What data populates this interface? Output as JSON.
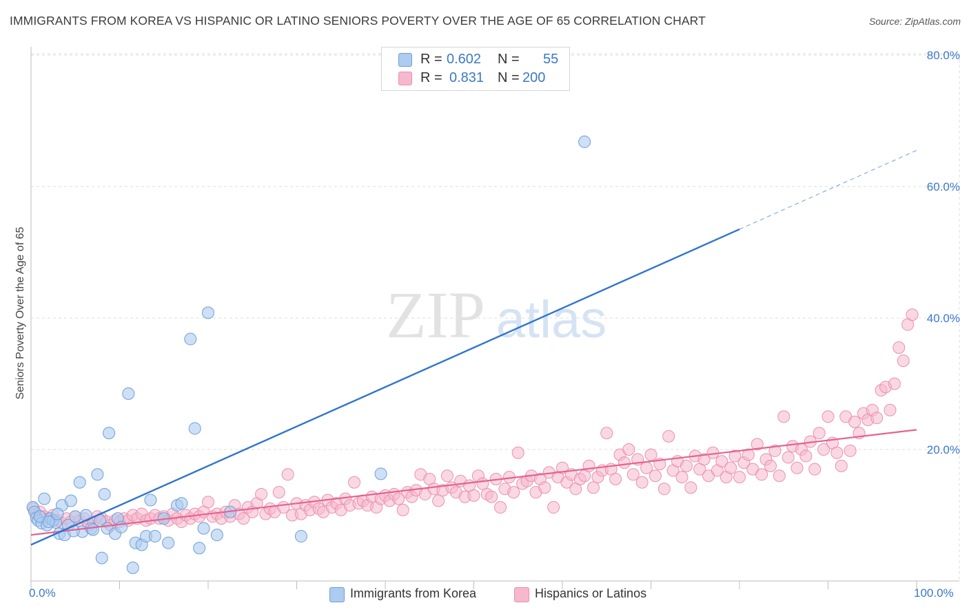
{
  "title": "IMMIGRANTS FROM KOREA VS HISPANIC OR LATINO SENIORS POVERTY OVER THE AGE OF 65 CORRELATION CHART",
  "source": "Source: ZipAtlas.com",
  "watermark": {
    "zip": "ZIP",
    "atlas": "atlas"
  },
  "legend": {
    "korea": {
      "r_label": "R =",
      "r_value": "0.602",
      "n_label": "N =",
      "n_value": "55"
    },
    "hispanic": {
      "r_label": "R =",
      "r_value": "0.831",
      "n_label": "N =",
      "n_value": "200"
    }
  },
  "bottom_legend": {
    "korea": "Immigrants from Korea",
    "hispanic": "Hispanics or Latinos"
  },
  "colors": {
    "korea_fill": "#aecbf0",
    "korea_stroke": "#6b9fd8",
    "korea_line": "#2e74d0",
    "hispanic_fill": "#f6b8cc",
    "hispanic_stroke": "#eb8fae",
    "hispanic_line": "#e5628f",
    "axis_label": "#3a78c9",
    "grid": "#dcdcdc"
  },
  "chart_data": {
    "type": "scatter",
    "title": "IMMIGRANTS FROM KOREA VS HISPANIC OR LATINO SENIORS POVERTY OVER THE AGE OF 65 CORRELATION CHART",
    "xlabel": "",
    "ylabel": "Seniors Poverty Over the Age of 65",
    "xlim": [
      0,
      100
    ],
    "ylim": [
      0,
      82
    ],
    "x_tick_labels": [
      "0.0%",
      "100.0%"
    ],
    "y_ticks": [
      20,
      40,
      60,
      80
    ],
    "y_tick_labels": [
      "20.0%",
      "40.0%",
      "60.0%",
      "80.0%"
    ],
    "grid": true,
    "series": [
      {
        "name": "Immigrants from Korea",
        "trend": {
          "x0": 0,
          "y0": 5.5,
          "x1": 80,
          "y1": 53.5,
          "dash_x1": 100,
          "dash_y1": 65.5
        },
        "points": [
          [
            0.2,
            11.2
          ],
          [
            0.4,
            10.5
          ],
          [
            0.6,
            9.6
          ],
          [
            0.8,
            9.2
          ],
          [
            1.2,
            8.8
          ],
          [
            1.5,
            12.5
          ],
          [
            1.8,
            8.5
          ],
          [
            2.2,
            9.5
          ],
          [
            2.5,
            9.2
          ],
          [
            2.8,
            8.9
          ],
          [
            3.2,
            7.2
          ],
          [
            3.5,
            11.5
          ],
          [
            3.8,
            7.0
          ],
          [
            4.2,
            8.5
          ],
          [
            4.5,
            12.2
          ],
          [
            5.0,
            9.8
          ],
          [
            5.5,
            15.0
          ],
          [
            5.8,
            7.5
          ],
          [
            6.2,
            10.0
          ],
          [
            6.8,
            8.0
          ],
          [
            7.0,
            7.8
          ],
          [
            7.5,
            16.2
          ],
          [
            7.8,
            9.2
          ],
          [
            8.0,
            3.5
          ],
          [
            8.3,
            13.2
          ],
          [
            8.6,
            8.0
          ],
          [
            8.8,
            22.5
          ],
          [
            9.5,
            7.2
          ],
          [
            9.8,
            9.5
          ],
          [
            10.2,
            8.2
          ],
          [
            11.0,
            28.5
          ],
          [
            11.5,
            2.0
          ],
          [
            11.8,
            5.8
          ],
          [
            12.5,
            5.5
          ],
          [
            13.0,
            6.8
          ],
          [
            13.5,
            12.3
          ],
          [
            14.0,
            6.8
          ],
          [
            15.0,
            9.5
          ],
          [
            15.5,
            5.8
          ],
          [
            16.5,
            11.5
          ],
          [
            17.0,
            11.8
          ],
          [
            18.0,
            36.8
          ],
          [
            18.5,
            23.2
          ],
          [
            19.0,
            5.0
          ],
          [
            19.5,
            8.0
          ],
          [
            20.0,
            40.8
          ],
          [
            21.0,
            7.0
          ],
          [
            22.5,
            10.5
          ],
          [
            30.5,
            6.8
          ],
          [
            39.5,
            16.3
          ],
          [
            62.5,
            66.8
          ],
          [
            1.0,
            9.8
          ],
          [
            2.0,
            9.0
          ],
          [
            3.0,
            10.2
          ],
          [
            4.8,
            7.6
          ]
        ]
      },
      {
        "name": "Hispanics or Latinos",
        "trend": {
          "x0": 0,
          "y0": 7.0,
          "x1": 100,
          "y1": 23.0
        },
        "points": [
          [
            0.3,
            11.0
          ],
          [
            0.6,
            10.2
          ],
          [
            1.0,
            10.5
          ],
          [
            1.5,
            9.8
          ],
          [
            2.0,
            9.5
          ],
          [
            2.5,
            10.0
          ],
          [
            3.0,
            9.2
          ],
          [
            3.5,
            8.8
          ],
          [
            4.0,
            9.5
          ],
          [
            4.5,
            9.0
          ],
          [
            5.0,
            9.8
          ],
          [
            5.5,
            9.2
          ],
          [
            6.0,
            9.5
          ],
          [
            6.5,
            8.5
          ],
          [
            7.0,
            9.0
          ],
          [
            7.5,
            9.8
          ],
          [
            8.0,
            9.5
          ],
          [
            8.5,
            9.0
          ],
          [
            9.0,
            8.5
          ],
          [
            9.5,
            9.2
          ],
          [
            10.0,
            9.0
          ],
          [
            10.5,
            9.5
          ],
          [
            11.0,
            9.2
          ],
          [
            11.5,
            10.0
          ],
          [
            12.0,
            9.5
          ],
          [
            12.5,
            10.2
          ],
          [
            13.0,
            9.2
          ],
          [
            13.5,
            9.5
          ],
          [
            14.0,
            10.0
          ],
          [
            14.5,
            9.5
          ],
          [
            15.0,
            9.8
          ],
          [
            15.5,
            9.2
          ],
          [
            16.0,
            10.2
          ],
          [
            16.5,
            9.5
          ],
          [
            17.0,
            9.0
          ],
          [
            17.5,
            10.0
          ],
          [
            18.0,
            9.5
          ],
          [
            18.5,
            10.2
          ],
          [
            19.0,
            9.8
          ],
          [
            19.5,
            10.5
          ],
          [
            20.0,
            12.0
          ],
          [
            20.5,
            9.8
          ],
          [
            21.0,
            10.2
          ],
          [
            21.5,
            9.5
          ],
          [
            22.0,
            10.5
          ],
          [
            22.5,
            9.8
          ],
          [
            23.0,
            11.5
          ],
          [
            23.5,
            10.2
          ],
          [
            24.0,
            9.5
          ],
          [
            24.5,
            11.2
          ],
          [
            25.0,
            10.5
          ],
          [
            25.5,
            11.8
          ],
          [
            26.0,
            13.2
          ],
          [
            26.5,
            10.2
          ],
          [
            27.0,
            11.0
          ],
          [
            27.5,
            10.5
          ],
          [
            28.0,
            13.5
          ],
          [
            28.5,
            11.2
          ],
          [
            29.0,
            16.2
          ],
          [
            29.5,
            10.0
          ],
          [
            30.0,
            11.8
          ],
          [
            30.5,
            10.2
          ],
          [
            31.0,
            11.5
          ],
          [
            31.5,
            10.8
          ],
          [
            32.0,
            12.0
          ],
          [
            32.5,
            11.0
          ],
          [
            33.0,
            10.5
          ],
          [
            33.5,
            12.3
          ],
          [
            34.0,
            11.2
          ],
          [
            34.5,
            11.8
          ],
          [
            35.0,
            10.8
          ],
          [
            35.5,
            12.5
          ],
          [
            36.0,
            11.5
          ],
          [
            36.5,
            15.0
          ],
          [
            37.0,
            11.8
          ],
          [
            37.5,
            12.2
          ],
          [
            38.0,
            11.5
          ],
          [
            38.5,
            12.8
          ],
          [
            39.0,
            11.2
          ],
          [
            39.5,
            12.5
          ],
          [
            40.0,
            13.0
          ],
          [
            40.5,
            12.2
          ],
          [
            41.0,
            13.2
          ],
          [
            41.5,
            12.5
          ],
          [
            42.0,
            10.8
          ],
          [
            42.5,
            13.5
          ],
          [
            43.0,
            12.8
          ],
          [
            43.5,
            13.8
          ],
          [
            44.0,
            16.2
          ],
          [
            44.5,
            13.2
          ],
          [
            45.0,
            15.5
          ],
          [
            45.5,
            14.0
          ],
          [
            46.0,
            12.2
          ],
          [
            46.5,
            13.8
          ],
          [
            47.0,
            16.0
          ],
          [
            47.5,
            14.2
          ],
          [
            48.0,
            13.5
          ],
          [
            48.5,
            15.2
          ],
          [
            49.0,
            12.8
          ],
          [
            49.5,
            14.5
          ],
          [
            50.0,
            13.0
          ],
          [
            50.5,
            16.0
          ],
          [
            51.0,
            14.8
          ],
          [
            51.5,
            13.2
          ],
          [
            52.0,
            12.8
          ],
          [
            52.5,
            15.5
          ],
          [
            53.0,
            11.2
          ],
          [
            53.5,
            14.0
          ],
          [
            54.0,
            15.8
          ],
          [
            54.5,
            13.5
          ],
          [
            55.0,
            19.5
          ],
          [
            55.5,
            14.8
          ],
          [
            56.0,
            15.2
          ],
          [
            56.5,
            16.0
          ],
          [
            57.0,
            13.5
          ],
          [
            57.5,
            15.5
          ],
          [
            58.0,
            14.2
          ],
          [
            58.5,
            16.5
          ],
          [
            59.0,
            11.2
          ],
          [
            59.5,
            15.8
          ],
          [
            60.0,
            17.2
          ],
          [
            60.5,
            15.0
          ],
          [
            61.0,
            16.2
          ],
          [
            61.5,
            14.0
          ],
          [
            62.0,
            15.5
          ],
          [
            62.5,
            16.0
          ],
          [
            63.0,
            17.5
          ],
          [
            63.5,
            14.2
          ],
          [
            64.0,
            15.8
          ],
          [
            64.5,
            16.8
          ],
          [
            65.0,
            22.5
          ],
          [
            65.5,
            17.0
          ],
          [
            66.0,
            15.5
          ],
          [
            66.5,
            19.2
          ],
          [
            67.0,
            18.0
          ],
          [
            67.5,
            20.0
          ],
          [
            68.0,
            16.2
          ],
          [
            68.5,
            18.5
          ],
          [
            69.0,
            15.0
          ],
          [
            69.5,
            17.2
          ],
          [
            70.0,
            19.2
          ],
          [
            70.5,
            16.0
          ],
          [
            71.0,
            17.8
          ],
          [
            71.5,
            14.0
          ],
          [
            72.0,
            22.0
          ],
          [
            72.5,
            16.8
          ],
          [
            73.0,
            18.2
          ],
          [
            73.5,
            15.8
          ],
          [
            74.0,
            17.5
          ],
          [
            74.5,
            14.2
          ],
          [
            75.0,
            19.0
          ],
          [
            75.5,
            17.0
          ],
          [
            76.0,
            18.5
          ],
          [
            76.5,
            16.0
          ],
          [
            77.0,
            19.5
          ],
          [
            77.5,
            16.8
          ],
          [
            78.0,
            18.2
          ],
          [
            78.5,
            15.8
          ],
          [
            79.0,
            17.2
          ],
          [
            79.5,
            19.0
          ],
          [
            80.0,
            15.8
          ],
          [
            80.5,
            18.0
          ],
          [
            81.0,
            19.2
          ],
          [
            81.5,
            17.0
          ],
          [
            82.0,
            20.8
          ],
          [
            82.5,
            16.2
          ],
          [
            83.0,
            18.5
          ],
          [
            83.5,
            17.5
          ],
          [
            84.0,
            19.8
          ],
          [
            84.5,
            16.0
          ],
          [
            85.0,
            25.0
          ],
          [
            85.5,
            18.8
          ],
          [
            86.0,
            20.5
          ],
          [
            86.5,
            17.2
          ],
          [
            87.0,
            20.0
          ],
          [
            87.5,
            19.0
          ],
          [
            88.0,
            21.2
          ],
          [
            88.5,
            17.0
          ],
          [
            89.0,
            22.5
          ],
          [
            89.5,
            20.0
          ],
          [
            90.0,
            25.0
          ],
          [
            90.5,
            21.0
          ],
          [
            91.0,
            19.5
          ],
          [
            91.5,
            17.5
          ],
          [
            92.0,
            25.0
          ],
          [
            92.5,
            19.8
          ],
          [
            93.0,
            24.2
          ],
          [
            93.5,
            22.5
          ],
          [
            94.0,
            25.5
          ],
          [
            94.5,
            24.5
          ],
          [
            95.0,
            26.0
          ],
          [
            95.5,
            24.8
          ],
          [
            96.0,
            29.0
          ],
          [
            96.5,
            29.5
          ],
          [
            97.0,
            26.0
          ],
          [
            97.5,
            30.0
          ],
          [
            98.0,
            35.5
          ],
          [
            98.5,
            33.5
          ],
          [
            99.0,
            39.0
          ],
          [
            99.5,
            40.5
          ]
        ]
      }
    ]
  }
}
